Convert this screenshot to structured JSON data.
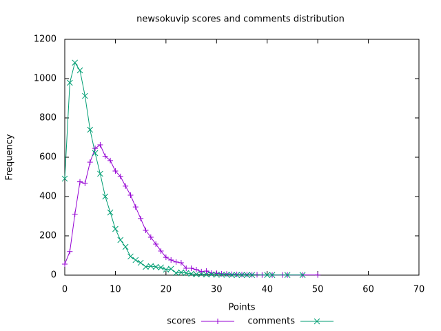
{
  "chart_data": {
    "type": "line",
    "title": "newsokuvip scores and comments distribution",
    "x_label": "Points",
    "y_label": "Frequency",
    "xlim": [
      0,
      70
    ],
    "ylim": [
      0,
      1200
    ],
    "xticks": [
      0,
      10,
      20,
      30,
      40,
      50,
      60,
      70
    ],
    "yticks": [
      0,
      200,
      400,
      600,
      800,
      1000,
      1200
    ],
    "grid": false,
    "legend": "bottom",
    "series": [
      {
        "name": "scores",
        "color": "#9400d3",
        "marker": "+",
        "x": [
          0,
          1,
          2,
          3,
          4,
          5,
          6,
          7,
          8,
          9,
          10,
          11,
          12,
          13,
          14,
          15,
          16,
          17,
          18,
          19,
          20,
          21,
          22,
          23,
          24,
          25,
          26,
          27,
          28,
          29,
          30,
          31,
          32,
          33,
          34,
          35,
          36,
          37,
          38,
          39,
          41,
          43,
          44,
          47,
          50
        ],
        "values": [
          56,
          120,
          310,
          475,
          467,
          575,
          645,
          663,
          605,
          583,
          530,
          502,
          453,
          407,
          347,
          288,
          228,
          193,
          158,
          123,
          91,
          77,
          67,
          63,
          35,
          35,
          28,
          18,
          21,
          11,
          10,
          7,
          6,
          5,
          4,
          3,
          3,
          2,
          2,
          1,
          1,
          1,
          1,
          1,
          1
        ]
      },
      {
        "name": "comments",
        "color": "#009e73",
        "marker": "x",
        "x": [
          0,
          1,
          2,
          3,
          4,
          5,
          6,
          7,
          8,
          9,
          10,
          11,
          12,
          13,
          14,
          15,
          16,
          17,
          18,
          19,
          20,
          21,
          22,
          23,
          24,
          25,
          26,
          27,
          28,
          29,
          30,
          31,
          32,
          33,
          34,
          35,
          36,
          37,
          40,
          41,
          44,
          47
        ],
        "values": [
          491,
          979,
          1081,
          1042,
          912,
          740,
          621,
          516,
          400,
          319,
          235,
          179,
          144,
          95,
          77,
          63,
          42,
          46,
          42,
          39,
          28,
          32,
          11,
          14,
          11,
          7,
          4,
          5,
          3,
          4,
          2,
          2,
          2,
          1,
          1,
          1,
          1,
          1,
          1,
          1,
          1,
          1
        ]
      }
    ]
  }
}
